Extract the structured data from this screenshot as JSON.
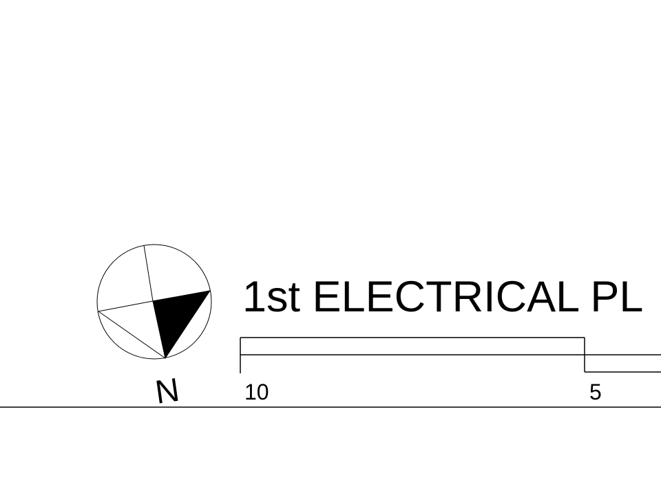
{
  "drawing": {
    "title": "1st ELECTRICAL PL",
    "north_label": "N",
    "scale_bar": {
      "labels": [
        "10",
        "5"
      ]
    },
    "colors": {
      "ink": "#000000",
      "paper": "#ffffff"
    },
    "icons": {
      "north_arrow": "north-arrow-icon"
    }
  }
}
